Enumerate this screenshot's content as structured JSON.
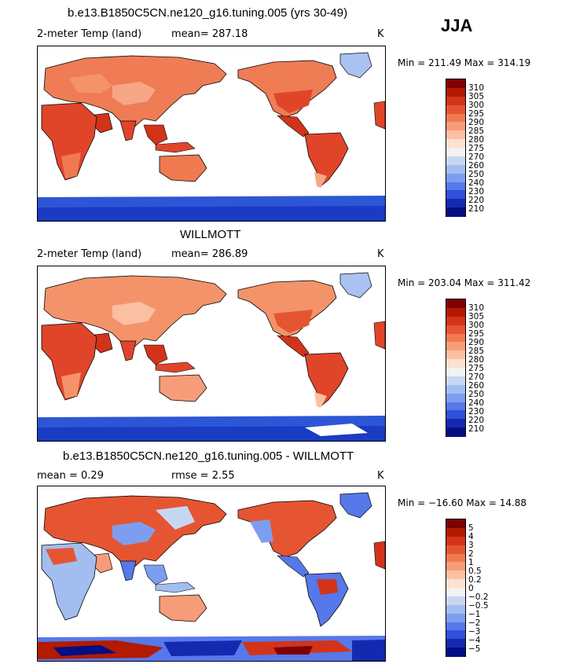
{
  "season": "JJA",
  "units": "K",
  "panels": [
    {
      "title": "b.e13.B1850C5CN.ne120_g16.tuning.005 (yrs 30-49)",
      "variable": "2-meter Temp (land)",
      "stat_text": "mean=  287.18",
      "units": "K",
      "minmax": "Min = 211.49 Max = 314.19",
      "colorbar_labels": [
        "310",
        "305",
        "300",
        "295",
        "290",
        "285",
        "280",
        "275",
        "270",
        "260",
        "250",
        "240",
        "230",
        "220",
        "210"
      ]
    },
    {
      "title": "WILLMOTT",
      "variable": "2-meter Temp (land)",
      "stat_text": "mean=  286.89",
      "units": "K",
      "minmax": "Min = 203.04 Max = 311.42",
      "colorbar_labels": [
        "310",
        "305",
        "300",
        "295",
        "290",
        "285",
        "280",
        "275",
        "270",
        "260",
        "250",
        "240",
        "230",
        "220",
        "210"
      ]
    },
    {
      "title": "b.e13.B1850C5CN.ne120_g16.tuning.005 - WILLMOTT",
      "variable": "mean =    0.29",
      "stat_text": "rmse =    2.55",
      "units": "K",
      "minmax": "Min = −16.60 Max =  14.88",
      "colorbar_labels": [
        "5",
        "4",
        "3",
        "2",
        "1",
        "0.5",
        "0.2",
        "0",
        "−0.2",
        "−0.5",
        "−1",
        "−2",
        "−3",
        "−4",
        "−5"
      ]
    }
  ],
  "colors": {
    "colorbar": [
      "#7f0000",
      "#b31a00",
      "#d2341a",
      "#e65532",
      "#f07a50",
      "#f79c78",
      "#fbbfa2",
      "#fde2d2",
      "#f2f2f2",
      "#c6d7f4",
      "#a3bdf0",
      "#7d9ef0",
      "#5678eb",
      "#2f50d8",
      "#1429b0",
      "#040e83"
    ],
    "land_warm": "#ee7751",
    "land_hot": "#e0452a",
    "land_cool": "#f7a685",
    "ice": "#2d56d6",
    "ice_deep": "#0b1ca0",
    "greenland": "#a9c2f2"
  }
}
